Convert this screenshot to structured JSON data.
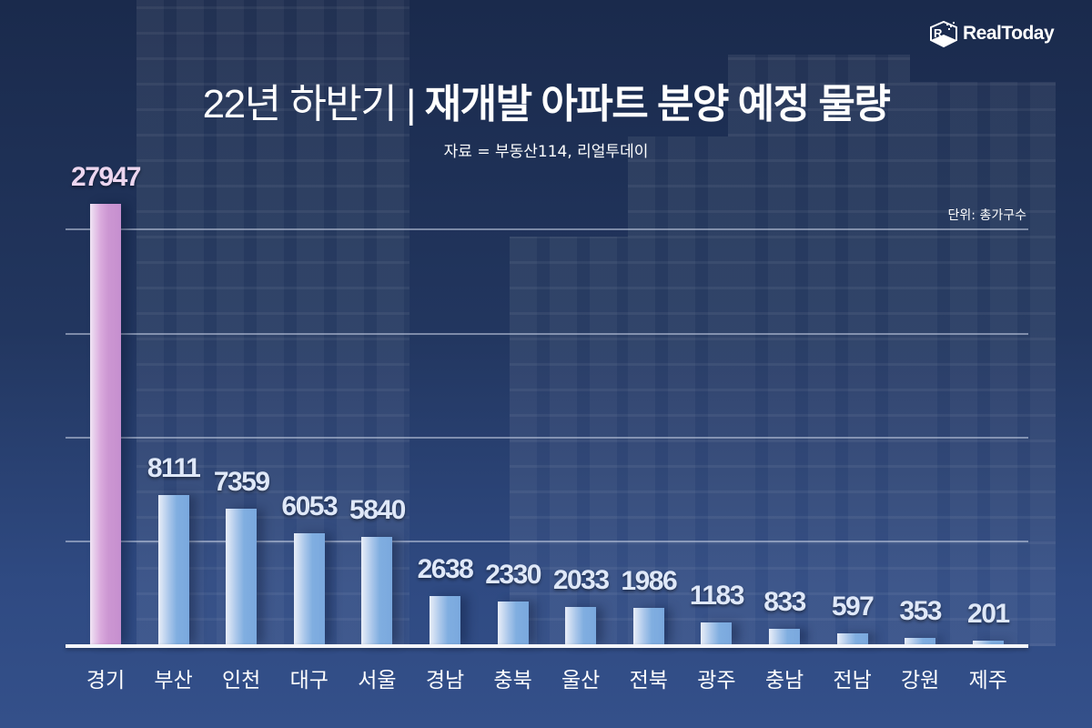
{
  "brand": {
    "logo_text": "RealToday",
    "logo_icon": "cube-r-logo-icon"
  },
  "header": {
    "title_light": "22년 하반기 |",
    "title_bold": "재개발 아파트 분양 예정 물량",
    "source": "자료 = 부동산114, 리얼투데이",
    "unit": "단위: 총가구수"
  },
  "colors": {
    "highlight_bar": "#C896D2",
    "bar": "#7AA8DE",
    "background": "#22365F"
  },
  "chart_data": {
    "type": "bar",
    "title": "22년 하반기 재개발 아파트 분양 예정 물량",
    "subtitle": "자료 = 부동산114, 리얼투데이",
    "unit": "단위: 총가구수",
    "xlabel": "",
    "ylabel": "총가구수",
    "categories": [
      "경기",
      "부산",
      "인천",
      "대구",
      "서울",
      "경남",
      "충북",
      "울산",
      "전북",
      "광주",
      "충남",
      "전남",
      "강원",
      "제주"
    ],
    "values": [
      27947,
      8111,
      7359,
      6053,
      5840,
      2638,
      2330,
      2033,
      1986,
      1183,
      833,
      597,
      353,
      201
    ],
    "highlight_index": 0,
    "grid": true,
    "axis_break_on_first_bar": true,
    "legend": null
  }
}
